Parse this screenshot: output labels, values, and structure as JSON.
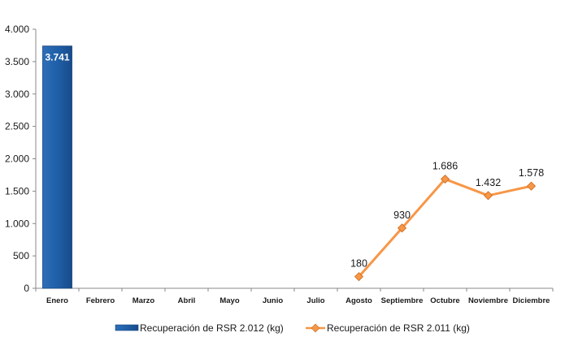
{
  "chart_data": {
    "type": "bar+line",
    "categories": [
      "Enero",
      "Febrero",
      "Marzo",
      "Abril",
      "Mayo",
      "Junio",
      "Julio",
      "Agosto",
      "Septiembre",
      "Octubre",
      "Noviembre",
      "Diciembre"
    ],
    "series": [
      {
        "name": "Recuperación de RSR 2.012 (kg)",
        "type": "bar",
        "color": "#1F5FA8",
        "values": [
          3741,
          null,
          null,
          null,
          null,
          null,
          null,
          null,
          null,
          null,
          null,
          null
        ],
        "labels": [
          "3.741",
          null,
          null,
          null,
          null,
          null,
          null,
          null,
          null,
          null,
          null,
          null
        ]
      },
      {
        "name": "Recuperación de RSR 2.011 (kg)",
        "type": "line",
        "color": "#F79646",
        "values": [
          null,
          null,
          null,
          null,
          null,
          null,
          null,
          180,
          930,
          1686,
          1432,
          1578
        ],
        "labels": [
          null,
          null,
          null,
          null,
          null,
          null,
          null,
          "180",
          "930",
          "1.686",
          "1.432",
          "1.578"
        ]
      }
    ],
    "ylim": [
      0,
      4000
    ],
    "yticks": [
      0,
      500,
      1000,
      1500,
      2000,
      2500,
      3000,
      3500,
      4000
    ],
    "ytick_labels": [
      "0",
      "500",
      "1.000",
      "1.500",
      "2.000",
      "2.500",
      "3.000",
      "3.500",
      "4.000"
    ],
    "grid": false,
    "legend_position": "bottom",
    "title": "",
    "xlabel": "",
    "ylabel": ""
  }
}
